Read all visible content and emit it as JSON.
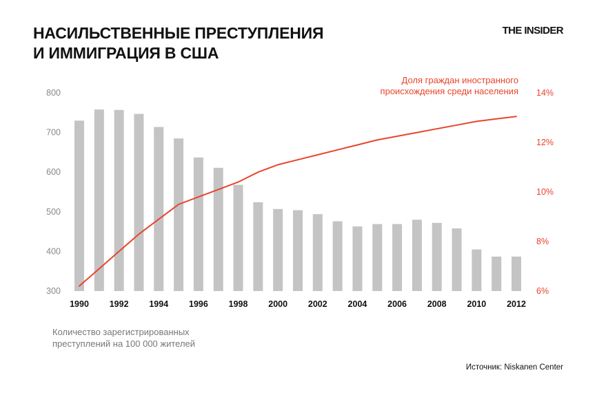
{
  "header": {
    "title_line1": "НАСИЛЬСТВЕННЫЕ ПРЕСТУПЛЕНИЯ",
    "title_line2": "И ИММИГРАЦИЯ В США",
    "brand": "THE INSIDER"
  },
  "footer": {
    "source": "Источник: Niskanen Center"
  },
  "colors": {
    "bars": "#c4c4c4",
    "line": "#e8442c",
    "left_axis_text": "#888888",
    "x_axis_text": "#111111"
  },
  "chart_data": {
    "type": "bar+line",
    "x": [
      1990,
      1991,
      1992,
      1993,
      1994,
      1995,
      1996,
      1997,
      1998,
      1999,
      2000,
      2001,
      2002,
      2003,
      2004,
      2005,
      2006,
      2007,
      2008,
      2009,
      2010,
      2011,
      2012
    ],
    "x_tick_labels": [
      "1990",
      "1992",
      "1994",
      "1996",
      "1998",
      "2000",
      "2002",
      "2004",
      "2006",
      "2008",
      "2010",
      "2012"
    ],
    "series": [
      {
        "kind": "bar",
        "axis": "left",
        "label_line1": "Количество зарегистрированных",
        "label_line2": "преступлений на 100 000 жителей",
        "values": [
          730,
          758,
          757,
          747,
          714,
          685,
          637,
          611,
          568,
          524,
          507,
          504,
          494,
          476,
          463,
          469,
          469,
          480,
          472,
          458,
          405,
          387,
          387
        ]
      },
      {
        "kind": "line",
        "axis": "right",
        "label_line1": "Доля граждан иностранного",
        "label_line2": "происхождения среди населения",
        "values": [
          6.2,
          6.9,
          7.6,
          8.3,
          8.9,
          9.5,
          9.8,
          10.1,
          10.4,
          10.8,
          11.1,
          11.3,
          11.5,
          11.7,
          11.9,
          12.1,
          12.25,
          12.4,
          12.55,
          12.7,
          12.85,
          12.95,
          13.05
        ]
      }
    ],
    "left_axis": {
      "ylim": [
        300,
        800
      ],
      "ticks": [
        "300",
        "400",
        "500",
        "600",
        "700",
        "800"
      ]
    },
    "right_axis": {
      "ylim": [
        6,
        14
      ],
      "ticks": [
        "6%",
        "8%",
        "10%",
        "12%",
        "14%"
      ]
    },
    "grid": false
  }
}
